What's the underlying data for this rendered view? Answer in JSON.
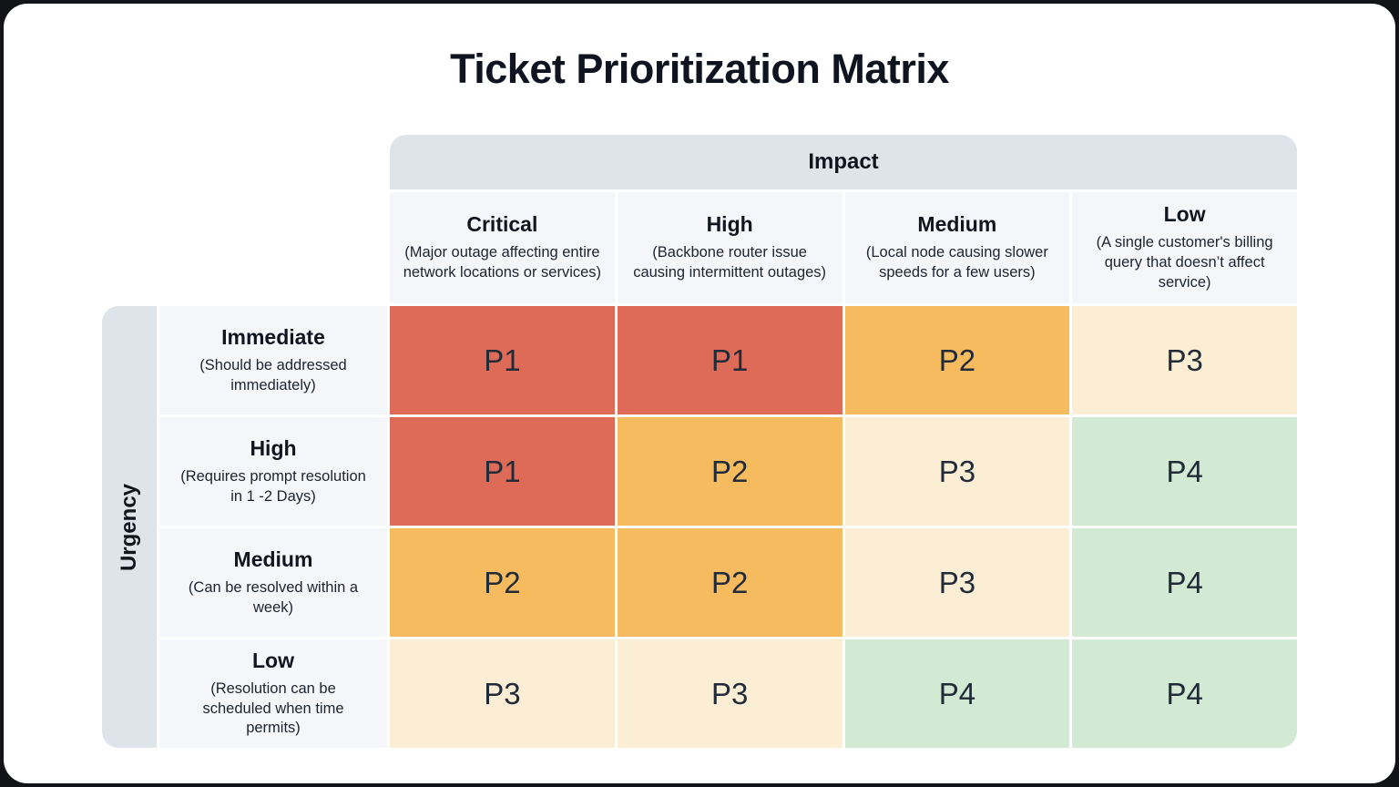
{
  "title": "Ticket Prioritization Matrix",
  "impact_axis_label": "Impact",
  "urgency_axis_label": "Urgency",
  "columns": [
    {
      "label": "Critical",
      "description": "(Major outage affecting entire network locations or services)"
    },
    {
      "label": "High",
      "description": "(Backbone router issue causing intermittent outages)"
    },
    {
      "label": "Medium",
      "description": "(Local node causing slower speeds for a few users)"
    },
    {
      "label": "Low",
      "description": "(A single customer's billing query that doesn’t affect service)"
    }
  ],
  "rows": [
    {
      "label": "Immediate",
      "description": "(Should be addressed immediately)",
      "cells": [
        "P1",
        "P1",
        "P2",
        "P3"
      ]
    },
    {
      "label": "High",
      "description": "(Requires prompt resolution in 1 -2 Days)",
      "cells": [
        "P1",
        "P2",
        "P3",
        "P4"
      ]
    },
    {
      "label": "Medium",
      "description": "(Can be resolved within a week)",
      "cells": [
        "P2",
        "P2",
        "P3",
        "P4"
      ]
    },
    {
      "label": "Low",
      "description": "(Resolution can be scheduled when time permits)",
      "cells": [
        "P3",
        "P3",
        "P4",
        "P4"
      ]
    }
  ],
  "priority_colors": {
    "P1": "#DE6B57",
    "P2": "#F7BB5F",
    "P3": "#FBEED4",
    "P4": "#D2E9D3"
  },
  "colors": {
    "axis_band": "#DFE3EA",
    "label_bg": "#F5F6FA",
    "card_bg": "#FFFFFF",
    "page_bg": "#131417",
    "text": "#10151F"
  }
}
